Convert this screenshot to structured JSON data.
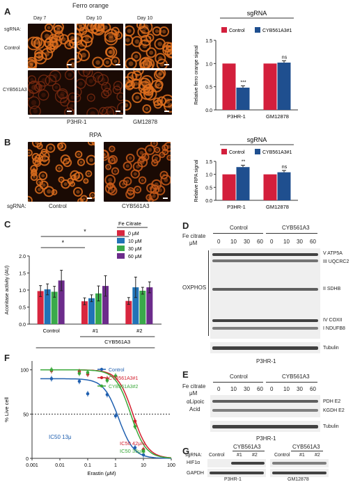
{
  "panelA": {
    "letter": "A",
    "title": "Ferro orange",
    "days": [
      "Day 7",
      "Day 10",
      "Day 10"
    ],
    "sgrna_label": "sgRNA:",
    "rows": [
      "Control",
      "CYB561A3"
    ],
    "cell_lines": [
      "P3HR-1",
      "GM12878"
    ]
  },
  "panelA_chart": {
    "header": "sgRNA",
    "legend": [
      "Control",
      "CYB561A3#1"
    ],
    "ylabel": "Relative ferro orange signal",
    "sig": [
      "***",
      "ns"
    ]
  },
  "panelB": {
    "letter": "B",
    "title": "RPA",
    "sgrna_label": "sgRNA:",
    "conditions": [
      "Control",
      "CYB561A3"
    ]
  },
  "panelB_chart": {
    "header": "sgRNA",
    "legend": [
      "Control",
      "CYB561A3#1"
    ],
    "ylabel": "Relative RPA signal",
    "sig": [
      "**",
      "ns"
    ]
  },
  "panelC": {
    "letter": "C",
    "legend_title": "Fe Citrate",
    "legend": [
      "0 μM",
      "10 μM",
      "30 μM",
      "60 μM"
    ],
    "ylabel": "Aconitase activity (AU)",
    "groups": [
      "Control",
      "#1",
      "#2"
    ],
    "group_label": "CYB561A3",
    "cell_line": "P3HR-1",
    "sig": [
      "*",
      "*"
    ]
  },
  "panelD": {
    "letter": "D",
    "treatment": "Fe citrate",
    "unit": "μM",
    "groups": [
      "Control",
      "CYB561A3"
    ],
    "doses": [
      "0",
      "10",
      "30",
      "60",
      "0",
      "10",
      "30",
      "60"
    ],
    "bands": [
      "V ATP5A",
      "III UQCRC2",
      "II SDHB",
      "IV COXII",
      "I NDUFB8"
    ],
    "left_label": "OXPHOS",
    "loading": "Tubulin",
    "cell_line": "P3HR-1"
  },
  "panelE": {
    "letter": "E",
    "treatment": "Fe citrate",
    "unit": "μM",
    "groups": [
      "Control",
      "CYB561A3"
    ],
    "doses": [
      "0",
      "10",
      "30",
      "60",
      "0",
      "10",
      "30",
      "60"
    ],
    "left_label_1": "αLipoic",
    "left_label_2": "Acid",
    "bands": [
      "PDH E2",
      "KGDH E2"
    ],
    "loading": "Tubulin",
    "cell_line": "P3HR-1"
  },
  "panelF": {
    "letter": "F",
    "legend": [
      "Control",
      "CYB561A3#1",
      "CYB561A3#2"
    ],
    "ic50": [
      "IC50 13μ",
      "IC50 42μM",
      "IC50 35μM"
    ],
    "ylabel": "% Live cell",
    "xlabel": "Erastin (μM)"
  },
  "panelG": {
    "letter": "G",
    "sgrna_label": "sgRNA:",
    "headers": [
      "CYB561A3",
      "CYB561A3"
    ],
    "lanes": [
      "Control",
      "#1",
      "#2",
      "Control",
      "#1",
      "#2"
    ],
    "proteins": [
      "HIF1α",
      "GAPDH"
    ],
    "cell_lines": [
      "P3HR-1",
      "GM12878"
    ]
  },
  "colors": {
    "control": "#d31f3c",
    "cyb1": "#1f4f8f",
    "c0": "#d8263f",
    "c10": "#2173b7",
    "c30": "#3aaa4a",
    "c60": "#6c2c8b",
    "f_control": "#2060b0",
    "f_cyb1": "#d2202f",
    "f_cyb2": "#3aa83a"
  },
  "chart_data": [
    {
      "type": "bar",
      "categories": [
        "P3HR-1",
        "GM12878"
      ],
      "series": [
        {
          "name": "Control",
          "values": [
            1.0,
            1.0
          ],
          "err": [
            0,
            0
          ]
        },
        {
          "name": "CYB561A3#1",
          "values": [
            0.48,
            1.02
          ],
          "err": [
            0.04,
            0.04
          ]
        }
      ],
      "ylabel": "Relative ferro orange signal",
      "ylim": [
        0,
        1.5
      ],
      "yticks": [
        0.0,
        0.5,
        1.0,
        1.5
      ]
    },
    {
      "type": "bar",
      "categories": [
        "P3HR-1",
        "GM12878"
      ],
      "series": [
        {
          "name": "Control",
          "values": [
            1.0,
            1.0
          ],
          "err": [
            0,
            0
          ]
        },
        {
          "name": "CYB561A3#1",
          "values": [
            1.28,
            1.08
          ],
          "err": [
            0.07,
            0.07
          ]
        }
      ],
      "ylabel": "Relative RPA signal",
      "ylim": [
        0,
        1.5
      ],
      "yticks": [
        0.0,
        0.5,
        1.0,
        1.5
      ]
    },
    {
      "type": "bar",
      "categories": [
        "Control",
        "#1",
        "#2"
      ],
      "series": [
        {
          "name": "0 μM",
          "values": [
            0.97,
            0.67,
            0.68
          ],
          "err": [
            0.16,
            0.1,
            0.1
          ]
        },
        {
          "name": "10 μM",
          "values": [
            1.02,
            0.76,
            1.08
          ],
          "err": [
            0.16,
            0.1,
            0.3
          ]
        },
        {
          "name": "30 μM",
          "values": [
            0.95,
            0.9,
            0.98
          ],
          "err": [
            0.16,
            0.22,
            0.1
          ]
        },
        {
          "name": "60 μM",
          "values": [
            1.28,
            1.12,
            1.08
          ],
          "err": [
            0.3,
            0.3,
            0.16
          ]
        }
      ],
      "ylabel": "Aconitase activity (AU)",
      "ylim": [
        0,
        2.0
      ],
      "yticks": [
        0.0,
        0.5,
        1.0,
        1.5,
        2.0
      ]
    },
    {
      "type": "line",
      "x_scale": "log",
      "xlim": [
        0.001,
        100
      ],
      "ylim": [
        0,
        110
      ],
      "xticks": [
        "0.001",
        "0.01",
        "0.1",
        "1",
        "10",
        "100"
      ],
      "yticks": [
        0,
        50,
        100
      ],
      "series": [
        {
          "name": "Control",
          "x": [
            0.005,
            0.05,
            0.1,
            0.5,
            1,
            5,
            10
          ],
          "y": [
            90,
            87,
            73,
            72,
            48,
            12,
            4
          ]
        },
        {
          "name": "CYB561A3#1",
          "x": [
            0.005,
            0.05,
            0.1,
            0.5,
            1,
            5,
            10
          ],
          "y": [
            99,
            98,
            95,
            90,
            93,
            42,
            10
          ]
        },
        {
          "name": "CYB561A3#2",
          "x": [
            0.005,
            0.05,
            0.1,
            0.5,
            1,
            5,
            10
          ],
          "y": [
            100,
            96,
            97,
            88,
            93,
            36,
            8
          ]
        }
      ],
      "ylabel": "% Live cell",
      "xlabel": "Erastin (μM)"
    }
  ]
}
